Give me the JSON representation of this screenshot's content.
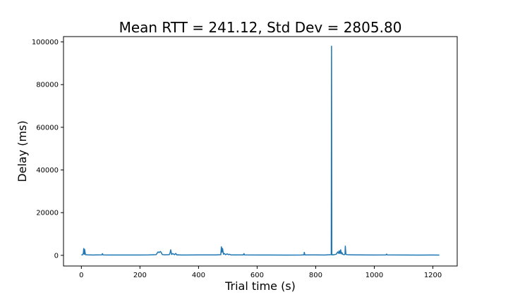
{
  "chart_data": {
    "type": "line",
    "title": "Mean RTT = 241.12, Std Dev = 2805.80",
    "xlabel": "Trial time (s)",
    "ylabel": "Delay (ms)",
    "xlim": [
      -61,
      1283
    ],
    "ylim": [
      -5000,
      102500
    ],
    "xticks": [
      0,
      200,
      400,
      600,
      800,
      1000,
      1200
    ],
    "yticks": [
      0,
      20000,
      40000,
      60000,
      80000,
      100000
    ],
    "grid": false,
    "line_color": "#1f77b4",
    "series": [
      {
        "x": [
          0,
          5,
          7,
          8,
          9,
          10,
          11,
          14,
          20,
          40,
          70,
          72,
          74,
          90,
          150,
          200,
          230,
          255,
          262,
          265,
          270,
          273,
          276,
          280,
          285,
          300,
          303,
          305,
          308,
          312,
          318,
          322,
          326,
          330,
          340,
          360,
          400,
          460,
          476,
          478,
          480,
          482,
          485,
          488,
          492,
          498,
          502,
          505,
          510,
          530,
          553,
          555,
          557,
          600,
          700,
          750,
          760,
          761,
          763,
          800,
          830,
          853,
          854,
          855,
          856,
          857,
          860,
          870,
          875,
          878,
          880,
          883,
          885,
          888,
          890,
          892,
          896,
          900,
          901,
          903,
          906,
          920,
          950,
          1000,
          1040,
          1042,
          1044,
          1100,
          1150,
          1200,
          1222
        ],
        "y": [
          200,
          300,
          1200,
          3200,
          1000,
          500,
          2800,
          300,
          250,
          150,
          250,
          800,
          200,
          150,
          150,
          160,
          180,
          300,
          1600,
          1300,
          1800,
          1200,
          400,
          300,
          250,
          300,
          1200,
          2600,
          400,
          800,
          300,
          900,
          200,
          250,
          150,
          160,
          180,
          200,
          300,
          4000,
          1500,
          3200,
          500,
          900,
          300,
          700,
          300,
          500,
          200,
          180,
          200,
          800,
          200,
          150,
          120,
          160,
          250,
          1400,
          200,
          200,
          150,
          300,
          98000,
          600,
          200,
          300,
          250,
          500,
          1600,
          900,
          2100,
          800,
          2600,
          700,
          1200,
          500,
          300,
          400,
          4300,
          600,
          300,
          250,
          200,
          150,
          200,
          600,
          200,
          150,
          130,
          150,
          120
        ]
      }
    ]
  }
}
